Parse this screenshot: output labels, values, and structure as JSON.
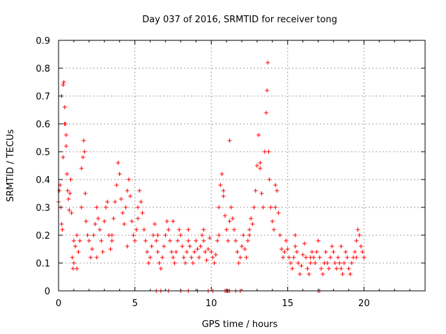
{
  "chart_data": {
    "type": "scatter",
    "title": "Day 037 of 2016, SRMTID for receiver tong",
    "xlabel": "GPS time / hours",
    "ylabel": "SRMTID / TECUs",
    "xlim": [
      0,
      24
    ],
    "ylim": [
      0,
      0.9
    ],
    "xticks": [
      0,
      5,
      10,
      15,
      20
    ],
    "yticks": [
      0,
      0.1,
      0.2,
      0.3,
      0.4,
      0.5,
      0.6,
      0.7,
      0.8,
      0.9
    ],
    "xtick_labels": [
      "0",
      "5",
      "10",
      "15",
      "20"
    ],
    "ytick_labels": [
      "0",
      "0.1",
      "0.2",
      "0.3",
      "0.4",
      "0.5",
      "0.6",
      "0.7",
      "0.8",
      "0.9"
    ],
    "grid": true,
    "marker": "+",
    "series": [
      {
        "name": "SRMTID",
        "color": "#ff0000",
        "x": [
          0.0,
          0.05,
          0.1,
          0.15,
          0.2,
          0.25,
          0.3,
          0.35,
          0.4,
          0.45,
          0.5,
          0.55,
          0.6,
          0.65,
          0.7,
          0.75,
          0.8,
          0.85,
          0.9,
          0.95,
          1.0,
          1.1,
          1.2,
          1.3,
          1.4,
          1.5,
          1.6,
          1.65,
          1.7,
          1.75,
          1.8,
          1.9,
          2.0,
          2.1,
          2.2,
          2.3,
          2.4,
          2.5,
          2.6,
          2.7,
          2.8,
          2.9,
          3.0,
          3.1,
          3.2,
          3.3,
          3.4,
          3.5,
          3.6,
          3.7,
          3.8,
          3.9,
          4.0,
          4.1,
          4.2,
          4.3,
          4.4,
          4.5,
          4.6,
          4.7,
          4.8,
          4.9,
          5.0,
          5.1,
          5.2,
          5.3,
          5.4,
          5.5,
          5.6,
          5.7,
          5.8,
          5.9,
          6.0,
          6.1,
          6.2,
          6.3,
          6.4,
          6.5,
          6.6,
          6.7,
          6.8,
          6.9,
          7.0,
          7.1,
          7.2,
          7.3,
          7.4,
          7.5,
          7.6,
          7.7,
          7.8,
          7.9,
          8.0,
          8.1,
          8.2,
          8.3,
          8.4,
          8.5,
          8.6,
          8.7,
          8.8,
          8.9,
          9.0,
          9.1,
          9.2,
          9.3,
          9.4,
          9.5,
          9.6,
          9.7,
          9.8,
          9.9,
          10.0,
          10.1,
          10.2,
          10.3,
          10.4,
          10.5,
          10.6,
          10.7,
          10.8,
          10.9,
          11.0,
          11.1,
          11.2,
          11.3,
          11.4,
          11.5,
          11.6,
          11.7,
          11.8,
          11.9,
          12.0,
          12.1,
          12.2,
          12.3,
          12.4,
          12.5,
          12.6,
          12.7,
          12.8,
          12.9,
          13.0,
          13.1,
          13.2,
          13.3,
          13.4,
          13.5,
          13.6,
          13.65,
          13.7,
          13.75,
          13.8,
          13.9,
          14.0,
          14.1,
          14.2,
          14.3,
          14.4,
          14.5,
          14.6,
          14.7,
          14.8,
          14.9,
          15.0,
          15.1,
          15.2,
          15.3,
          15.4,
          15.5,
          15.6,
          15.7,
          15.8,
          15.9,
          16.0,
          16.1,
          16.2,
          16.3,
          16.4,
          16.5,
          16.6,
          16.7,
          16.8,
          16.9,
          17.0,
          17.1,
          17.2,
          17.3,
          17.4,
          17.5,
          17.6,
          17.7,
          17.8,
          17.9,
          18.0,
          18.1,
          18.2,
          18.3,
          18.4,
          18.5,
          18.6,
          18.7,
          18.8,
          18.9,
          19.0,
          19.1,
          19.2,
          19.3,
          19.4,
          19.5,
          19.6,
          19.7,
          19.8,
          19.9,
          20.0,
          0.2,
          0.3,
          0.4,
          0.5,
          1.0,
          1.2,
          1.5,
          2.5,
          3.5,
          4.5,
          5.2,
          6.5,
          7.5,
          8.5,
          9.5,
          10.5,
          10.8,
          11.2,
          12.5,
          13.2,
          14.2,
          15.5,
          16.5,
          17.5,
          18.5,
          19.5,
          6.4,
          6.7,
          7.2,
          8.0,
          8.5,
          9.1,
          9.8,
          10.1,
          10.9,
          11.0,
          11.05,
          11.1,
          11.2,
          11.6,
          11.9,
          17.0,
          17.1
        ],
        "y": [
          0.32,
          0.36,
          0.38,
          0.3,
          0.24,
          0.22,
          0.48,
          0.75,
          0.66,
          0.6,
          0.52,
          0.42,
          0.36,
          0.33,
          0.29,
          0.35,
          0.4,
          0.28,
          0.12,
          0.08,
          0.18,
          0.16,
          0.2,
          0.14,
          0.18,
          0.3,
          0.48,
          0.54,
          0.5,
          0.35,
          0.25,
          0.2,
          0.18,
          0.12,
          0.15,
          0.2,
          0.24,
          0.3,
          0.26,
          0.22,
          0.18,
          0.14,
          0.25,
          0.3,
          0.32,
          0.2,
          0.15,
          0.18,
          0.26,
          0.32,
          0.38,
          0.46,
          0.42,
          0.33,
          0.28,
          0.24,
          0.3,
          0.36,
          0.4,
          0.34,
          0.25,
          0.2,
          0.18,
          0.22,
          0.3,
          0.36,
          0.32,
          0.28,
          0.22,
          0.18,
          0.14,
          0.1,
          0.12,
          0.16,
          0.2,
          0.24,
          0.18,
          0.14,
          0.1,
          0.08,
          0.12,
          0.16,
          0.2,
          0.25,
          0.22,
          0.18,
          0.14,
          0.12,
          0.1,
          0.14,
          0.18,
          0.22,
          0.2,
          0.16,
          0.12,
          0.1,
          0.14,
          0.18,
          0.16,
          0.12,
          0.1,
          0.14,
          0.18,
          0.15,
          0.12,
          0.16,
          0.2,
          0.18,
          0.14,
          0.11,
          0.15,
          0.19,
          0.14,
          0.12,
          0.1,
          0.13,
          0.18,
          0.3,
          0.38,
          0.42,
          0.34,
          0.27,
          0.22,
          0.18,
          0.25,
          0.3,
          0.26,
          0.22,
          0.18,
          0.14,
          0.1,
          0.12,
          0.16,
          0.2,
          0.15,
          0.12,
          0.18,
          0.22,
          0.26,
          0.24,
          0.3,
          0.36,
          0.45,
          0.56,
          0.44,
          0.35,
          0.3,
          0.5,
          0.64,
          0.72,
          0.82,
          0.5,
          0.4,
          0.3,
          0.25,
          0.22,
          0.3,
          0.36,
          0.28,
          0.2,
          0.15,
          0.12,
          0.14,
          0.18,
          0.15,
          0.12,
          0.1,
          0.08,
          0.12,
          0.16,
          0.14,
          0.1,
          0.06,
          0.09,
          0.13,
          0.17,
          0.12,
          0.08,
          0.06,
          0.1,
          0.14,
          0.12,
          0.1,
          0.14,
          0.18,
          0.12,
          0.08,
          0.06,
          0.1,
          0.14,
          0.1,
          0.08,
          0.12,
          0.16,
          0.14,
          0.1,
          0.08,
          0.12,
          0.1,
          0.08,
          0.06,
          0.1,
          0.14,
          0.12,
          0.08,
          0.06,
          0.1,
          0.12,
          0.14,
          0.18,
          0.22,
          0.2,
          0.16,
          0.14,
          0.12,
          0.7,
          0.74,
          0.6,
          0.56,
          0.1,
          0.08,
          0.44,
          0.12,
          0.2,
          0.16,
          0.26,
          0.2,
          0.25,
          0.22,
          0.22,
          0.2,
          0.36,
          0.54,
          0.2,
          0.46,
          0.38,
          0.2,
          0.12,
          0.14,
          0.16,
          0.12,
          0.0,
          0.0,
          0.0,
          0.0,
          0.0,
          0.0,
          0.0,
          0.0,
          0.0,
          0.0,
          0.0,
          0.0,
          0.0,
          0.0,
          0.0,
          0.0,
          0.0
        ]
      }
    ]
  }
}
